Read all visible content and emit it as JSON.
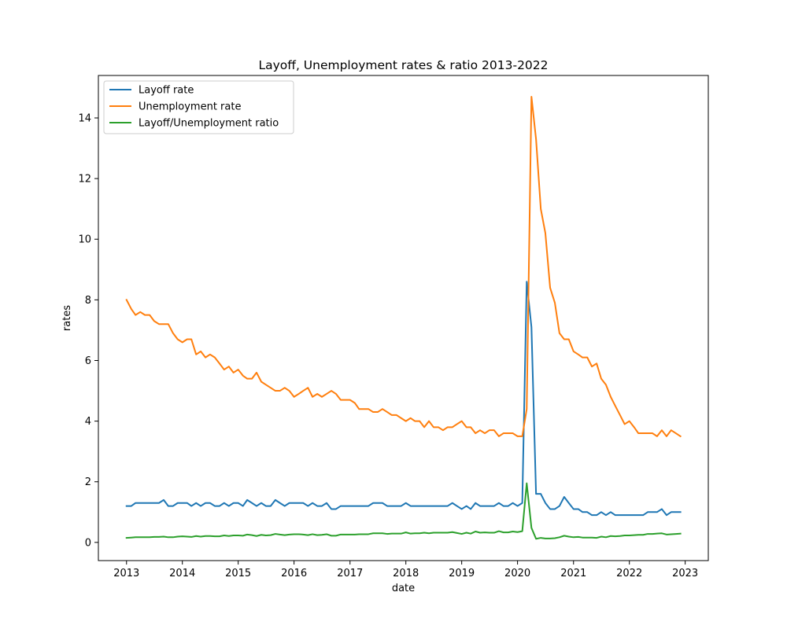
{
  "chart_data": {
    "type": "line",
    "title": "Layoff, Unemployment rates & ratio 2013-2022",
    "xlabel": "date",
    "ylabel": "rates",
    "x_range": [
      "2012-07-01",
      "2023-06-01"
    ],
    "ylim": [
      -0.6,
      15.4
    ],
    "x_ticks": [
      "2013",
      "2014",
      "2015",
      "2016",
      "2017",
      "2018",
      "2019",
      "2020",
      "2021",
      "2022",
      "2023"
    ],
    "y_ticks": [
      "0",
      "2",
      "4",
      "6",
      "8",
      "10",
      "12",
      "14"
    ],
    "grid": false,
    "legend_position": "top-left",
    "x": [
      "2013-01",
      "2013-02",
      "2013-03",
      "2013-04",
      "2013-05",
      "2013-06",
      "2013-07",
      "2013-08",
      "2013-09",
      "2013-10",
      "2013-11",
      "2013-12",
      "2014-01",
      "2014-02",
      "2014-03",
      "2014-04",
      "2014-05",
      "2014-06",
      "2014-07",
      "2014-08",
      "2014-09",
      "2014-10",
      "2014-11",
      "2014-12",
      "2015-01",
      "2015-02",
      "2015-03",
      "2015-04",
      "2015-05",
      "2015-06",
      "2015-07",
      "2015-08",
      "2015-09",
      "2015-10",
      "2015-11",
      "2015-12",
      "2016-01",
      "2016-02",
      "2016-03",
      "2016-04",
      "2016-05",
      "2016-06",
      "2016-07",
      "2016-08",
      "2016-09",
      "2016-10",
      "2016-11",
      "2016-12",
      "2017-01",
      "2017-02",
      "2017-03",
      "2017-04",
      "2017-05",
      "2017-06",
      "2017-07",
      "2017-08",
      "2017-09",
      "2017-10",
      "2017-11",
      "2017-12",
      "2018-01",
      "2018-02",
      "2018-03",
      "2018-04",
      "2018-05",
      "2018-06",
      "2018-07",
      "2018-08",
      "2018-09",
      "2018-10",
      "2018-11",
      "2018-12",
      "2019-01",
      "2019-02",
      "2019-03",
      "2019-04",
      "2019-05",
      "2019-06",
      "2019-07",
      "2019-08",
      "2019-09",
      "2019-10",
      "2019-11",
      "2019-12",
      "2020-01",
      "2020-02",
      "2020-03",
      "2020-04",
      "2020-05",
      "2020-06",
      "2020-07",
      "2020-08",
      "2020-09",
      "2020-10",
      "2020-11",
      "2020-12",
      "2021-01",
      "2021-02",
      "2021-03",
      "2021-04",
      "2021-05",
      "2021-06",
      "2021-07",
      "2021-08",
      "2021-09",
      "2021-10",
      "2021-11",
      "2021-12",
      "2022-01",
      "2022-02",
      "2022-03",
      "2022-04",
      "2022-05",
      "2022-06",
      "2022-07",
      "2022-08",
      "2022-09",
      "2022-10",
      "2022-11",
      "2022-12"
    ],
    "series": [
      {
        "name": "Layoff rate",
        "color": "#1f77b4",
        "values": [
          1.2,
          1.2,
          1.3,
          1.3,
          1.3,
          1.3,
          1.3,
          1.3,
          1.4,
          1.2,
          1.2,
          1.3,
          1.3,
          1.3,
          1.2,
          1.3,
          1.2,
          1.3,
          1.3,
          1.2,
          1.2,
          1.3,
          1.2,
          1.3,
          1.3,
          1.2,
          1.4,
          1.3,
          1.2,
          1.3,
          1.2,
          1.2,
          1.4,
          1.3,
          1.2,
          1.3,
          1.3,
          1.3,
          1.3,
          1.2,
          1.3,
          1.2,
          1.2,
          1.3,
          1.1,
          1.1,
          1.2,
          1.2,
          1.2,
          1.2,
          1.2,
          1.2,
          1.2,
          1.3,
          1.3,
          1.3,
          1.2,
          1.2,
          1.2,
          1.2,
          1.3,
          1.2,
          1.2,
          1.2,
          1.2,
          1.2,
          1.2,
          1.2,
          1.2,
          1.2,
          1.3,
          1.2,
          1.1,
          1.2,
          1.1,
          1.3,
          1.2,
          1.2,
          1.2,
          1.2,
          1.3,
          1.2,
          1.2,
          1.3,
          1.2,
          1.3,
          8.6,
          7.1,
          1.6,
          1.6,
          1.3,
          1.1,
          1.1,
          1.2,
          1.5,
          1.3,
          1.1,
          1.1,
          1.0,
          1.0,
          0.9,
          0.9,
          1.0,
          0.9,
          1.0,
          0.9,
          0.9,
          0.9,
          0.9,
          0.9,
          0.9,
          0.9,
          1.0,
          1.0,
          1.0,
          1.1,
          0.9,
          1.0,
          1.0,
          1.0
        ]
      },
      {
        "name": "Unemployment rate",
        "color": "#ff7f0e",
        "values": [
          8.0,
          7.7,
          7.5,
          7.6,
          7.5,
          7.5,
          7.3,
          7.2,
          7.2,
          7.2,
          6.9,
          6.7,
          6.6,
          6.7,
          6.7,
          6.2,
          6.3,
          6.1,
          6.2,
          6.1,
          5.9,
          5.7,
          5.8,
          5.6,
          5.7,
          5.5,
          5.4,
          5.4,
          5.6,
          5.3,
          5.2,
          5.1,
          5.0,
          5.0,
          5.1,
          5.0,
          4.8,
          4.9,
          5.0,
          5.1,
          4.8,
          4.9,
          4.8,
          4.9,
          5.0,
          4.9,
          4.7,
          4.7,
          4.7,
          4.6,
          4.4,
          4.4,
          4.4,
          4.3,
          4.3,
          4.4,
          4.3,
          4.2,
          4.2,
          4.1,
          4.0,
          4.1,
          4.0,
          4.0,
          3.8,
          4.0,
          3.8,
          3.8,
          3.7,
          3.8,
          3.8,
          3.9,
          4.0,
          3.8,
          3.8,
          3.6,
          3.7,
          3.6,
          3.7,
          3.7,
          3.5,
          3.6,
          3.6,
          3.6,
          3.5,
          3.5,
          4.4,
          14.7,
          13.3,
          11.0,
          10.2,
          8.4,
          7.9,
          6.9,
          6.7,
          6.7,
          6.3,
          6.2,
          6.1,
          6.1,
          5.8,
          5.9,
          5.4,
          5.2,
          4.8,
          4.5,
          4.2,
          3.9,
          4.0,
          3.8,
          3.6,
          3.6,
          3.6,
          3.6,
          3.5,
          3.7,
          3.5,
          3.7,
          3.6,
          3.5
        ]
      },
      {
        "name": "Layoff/Unemployment ratio",
        "color": "#2ca02c",
        "values": [
          0.15,
          0.16,
          0.17,
          0.17,
          0.17,
          0.17,
          0.18,
          0.18,
          0.19,
          0.17,
          0.17,
          0.19,
          0.2,
          0.19,
          0.18,
          0.21,
          0.19,
          0.21,
          0.21,
          0.2,
          0.2,
          0.23,
          0.21,
          0.23,
          0.23,
          0.22,
          0.26,
          0.24,
          0.21,
          0.25,
          0.23,
          0.24,
          0.28,
          0.26,
          0.24,
          0.26,
          0.27,
          0.27,
          0.26,
          0.24,
          0.27,
          0.24,
          0.25,
          0.27,
          0.22,
          0.22,
          0.26,
          0.26,
          0.26,
          0.26,
          0.27,
          0.27,
          0.27,
          0.3,
          0.3,
          0.3,
          0.28,
          0.29,
          0.29,
          0.29,
          0.33,
          0.29,
          0.3,
          0.3,
          0.32,
          0.3,
          0.32,
          0.32,
          0.32,
          0.32,
          0.34,
          0.31,
          0.28,
          0.32,
          0.29,
          0.36,
          0.32,
          0.33,
          0.32,
          0.32,
          0.37,
          0.33,
          0.33,
          0.36,
          0.34,
          0.37,
          1.95,
          0.48,
          0.12,
          0.15,
          0.13,
          0.13,
          0.14,
          0.17,
          0.22,
          0.19,
          0.17,
          0.18,
          0.16,
          0.16,
          0.16,
          0.15,
          0.19,
          0.17,
          0.21,
          0.2,
          0.21,
          0.23,
          0.23,
          0.24,
          0.25,
          0.25,
          0.28,
          0.28,
          0.29,
          0.3,
          0.26,
          0.27,
          0.28,
          0.29
        ]
      }
    ]
  }
}
